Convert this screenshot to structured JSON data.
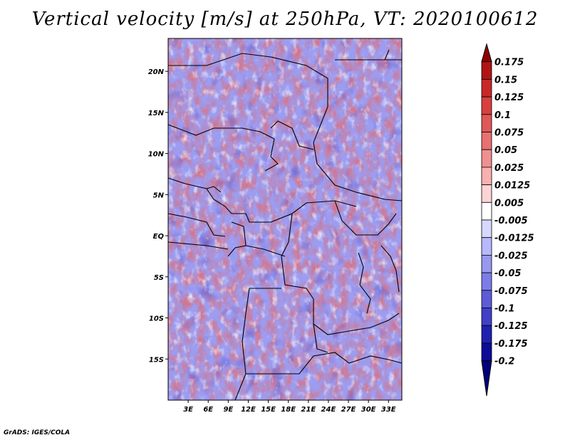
{
  "chart_data": {
    "type": "heatmap",
    "title": "Vertical velocity [m/s] at 250hPa, VT: 2020100612",
    "variable": "Vertical velocity",
    "units": "m/s",
    "level": "250hPa",
    "valid_time": "2020100612",
    "lon_range": [
      0,
      35
    ],
    "lat_range": [
      -20,
      24
    ],
    "x_ticks": [
      "3E",
      "6E",
      "9E",
      "12E",
      "15E",
      "18E",
      "21E",
      "24E",
      "27E",
      "30E",
      "33E"
    ],
    "x_tick_values": [
      3,
      6,
      9,
      12,
      15,
      18,
      21,
      24,
      27,
      30,
      33
    ],
    "y_ticks": [
      "20N",
      "15N",
      "10N",
      "5N",
      "EQ",
      "5S",
      "10S",
      "15S"
    ],
    "y_tick_values": [
      20,
      15,
      10,
      5,
      0,
      -5,
      -10,
      -15
    ],
    "colorbar": {
      "labels": [
        "0.175",
        "0.15",
        "0.125",
        "0.1",
        "0.075",
        "0.05",
        "0.025",
        "0.0125",
        "0.005",
        "-0.005",
        "-0.0125",
        "-0.025",
        "-0.05",
        "-0.075",
        "-0.1",
        "-0.125",
        "-0.175",
        "-0.2"
      ],
      "colors": [
        "#8f0000",
        "#b01414",
        "#c82828",
        "#d84040",
        "#e05858",
        "#e87070",
        "#f09090",
        "#f8b0b0",
        "#fcd4d4",
        "#ffffff",
        "#d8d8ff",
        "#b8b8ff",
        "#9898f0",
        "#7c7ce8",
        "#5c5cd8",
        "#4040c8",
        "#2020b0",
        "#0c0c98",
        "#00007a"
      ],
      "extend": "both"
    }
  },
  "footer": {
    "credit": "GrADS: IGES/COLA"
  }
}
